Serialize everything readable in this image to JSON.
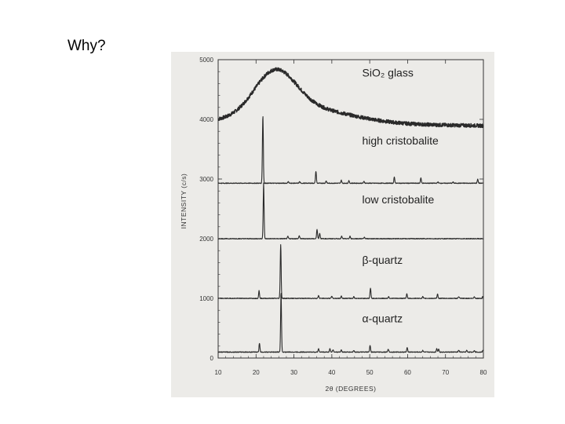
{
  "slide": {
    "title": "Why?"
  },
  "chart_data": {
    "type": "line",
    "xlabel": "2θ (DEGREES)",
    "ylabel": "INTENSITY (c/s)",
    "xlim": [
      10,
      80
    ],
    "ylim": [
      0,
      5000
    ],
    "x_ticks": [
      10,
      20,
      30,
      40,
      50,
      60,
      70,
      80
    ],
    "y_ticks": [
      0,
      1000,
      2000,
      3000,
      4000,
      5000
    ],
    "grid": false,
    "colors": {
      "trace": "#2a2a2a",
      "axis": "#333333",
      "background": "#ecebe8"
    },
    "series": [
      {
        "name": "SiO₂ glass",
        "baseline": 3950,
        "noise": 30,
        "hump": {
          "center": 25,
          "height": 700,
          "width": 5.5,
          "tail": 0.001
        },
        "peaks": []
      },
      {
        "name": "high cristobalite",
        "baseline": 2930,
        "noise": 6,
        "peaks": [
          {
            "x": 21.8,
            "height": 1130
          },
          {
            "x": 28.5,
            "height": 30
          },
          {
            "x": 31.5,
            "height": 25
          },
          {
            "x": 35.8,
            "height": 200
          },
          {
            "x": 38.5,
            "height": 40
          },
          {
            "x": 42.5,
            "height": 50
          },
          {
            "x": 44.5,
            "height": 40
          },
          {
            "x": 48.5,
            "height": 30
          },
          {
            "x": 56.5,
            "height": 100
          },
          {
            "x": 63.5,
            "height": 90
          },
          {
            "x": 68,
            "height": 20
          },
          {
            "x": 72,
            "height": 20
          },
          {
            "x": 78.5,
            "height": 70
          }
        ]
      },
      {
        "name": "low cristobalite",
        "baseline": 2000,
        "noise": 6,
        "peaks": [
          {
            "x": 22,
            "height": 930
          },
          {
            "x": 28.4,
            "height": 40
          },
          {
            "x": 31.4,
            "height": 50
          },
          {
            "x": 36.1,
            "height": 160
          },
          {
            "x": 36.8,
            "height": 90
          },
          {
            "x": 42.6,
            "height": 40
          },
          {
            "x": 44.8,
            "height": 40
          },
          {
            "x": 48.6,
            "height": 25
          }
        ]
      },
      {
        "name": "β-quartz",
        "baseline": 1000,
        "noise": 6,
        "peaks": [
          {
            "x": 20.8,
            "height": 130
          },
          {
            "x": 26.5,
            "height": 900
          },
          {
            "x": 36.5,
            "height": 50
          },
          {
            "x": 40,
            "height": 40
          },
          {
            "x": 42.5,
            "height": 40
          },
          {
            "x": 45.8,
            "height": 30
          },
          {
            "x": 50.2,
            "height": 170
          },
          {
            "x": 55,
            "height": 30
          },
          {
            "x": 59.8,
            "height": 80
          },
          {
            "x": 64,
            "height": 30
          },
          {
            "x": 67.9,
            "height": 70
          },
          {
            "x": 73.5,
            "height": 30
          },
          {
            "x": 77.6,
            "height": 30
          },
          {
            "x": 79.8,
            "height": 30
          }
        ]
      },
      {
        "name": "α-quartz",
        "baseline": 100,
        "noise": 6,
        "peaks": [
          {
            "x": 20.9,
            "height": 150
          },
          {
            "x": 26.6,
            "height": 1000
          },
          {
            "x": 36.5,
            "height": 60
          },
          {
            "x": 39.5,
            "height": 60
          },
          {
            "x": 40.3,
            "height": 40
          },
          {
            "x": 42.5,
            "height": 40
          },
          {
            "x": 45.8,
            "height": 30
          },
          {
            "x": 50.1,
            "height": 110
          },
          {
            "x": 54.9,
            "height": 50
          },
          {
            "x": 59.9,
            "height": 80
          },
          {
            "x": 64,
            "height": 30
          },
          {
            "x": 67.7,
            "height": 60
          },
          {
            "x": 68.2,
            "height": 50
          },
          {
            "x": 73.5,
            "height": 30
          },
          {
            "x": 75.6,
            "height": 30
          },
          {
            "x": 77.6,
            "height": 30
          },
          {
            "x": 79.9,
            "height": 30
          }
        ]
      }
    ],
    "labels": [
      {
        "text": "Si",
        "sub": "O₂",
        "rest": " glass",
        "x": 48,
        "y": 4720
      },
      {
        "text": "high cristobalite",
        "x": 48,
        "y": 3580
      },
      {
        "text": "low cristobalite",
        "x": 48,
        "y": 2590
      },
      {
        "text": "β-quartz",
        "x": 48,
        "y": 1580
      },
      {
        "text": "α-quartz",
        "x": 48,
        "y": 600
      }
    ]
  }
}
